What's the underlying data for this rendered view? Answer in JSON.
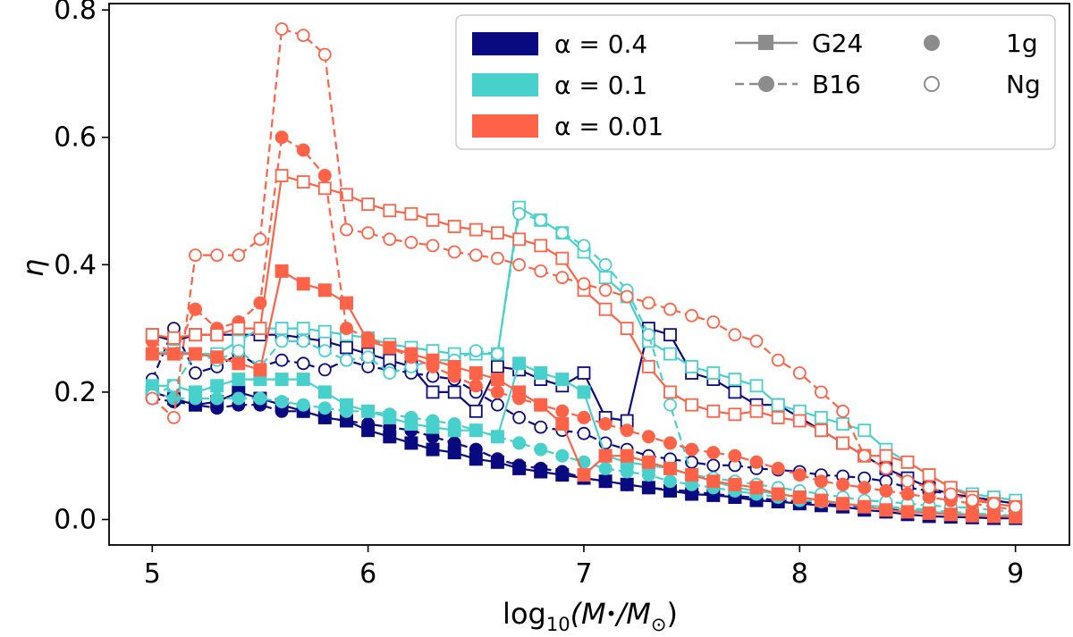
{
  "chart_data": {
    "type": "line",
    "xlabel": "log₁₀(M•/M⊙)",
    "xlabel_parts": {
      "prefix": "log",
      "sub": "10",
      "body": "(M",
      "bullet": "•",
      "slash": "/M",
      "sun": "⊙",
      "close": ")"
    },
    "ylabel": "η",
    "xlim": [
      4.8,
      9.25
    ],
    "ylim": [
      -0.04,
      0.81
    ],
    "xticks": [
      5,
      6,
      7,
      8,
      9
    ],
    "yticks": [
      0.0,
      0.2,
      0.4,
      0.6,
      0.8
    ],
    "xtick_labels": [
      "5",
      "6",
      "7",
      "8",
      "9"
    ],
    "ytick_labels": [
      "0.0",
      "0.2",
      "0.4",
      "0.6",
      "0.8"
    ],
    "grid": false,
    "legend_position": "top-right",
    "legend": {
      "colors": [
        {
          "label": "α = 0.4",
          "color": "#0a0a80"
        },
        {
          "label": "α = 0.1",
          "color": "#48d1cc"
        },
        {
          "label": "α = 0.01",
          "color": "#ff6347"
        }
      ],
      "models": [
        {
          "label": "G24",
          "dash": "solid",
          "marker": "square"
        },
        {
          "label": "B16",
          "dash": "dashed",
          "marker": "circle"
        }
      ],
      "populations": [
        {
          "label": "1g",
          "fill": "filled"
        },
        {
          "label": "Ng",
          "fill": "open"
        }
      ],
      "gray": "#8c8c8c"
    },
    "x": [
      5.0,
      5.1,
      5.2,
      5.3,
      5.4,
      5.5,
      5.6,
      5.7,
      5.8,
      5.9,
      6.0,
      6.1,
      6.2,
      6.3,
      6.4,
      6.5,
      6.6,
      6.7,
      6.8,
      6.9,
      7.0,
      7.1,
      7.2,
      7.3,
      7.4,
      7.5,
      7.6,
      7.7,
      7.8,
      7.9,
      8.0,
      8.1,
      8.2,
      8.3,
      8.4,
      8.5,
      8.6,
      8.7,
      8.8,
      8.9,
      9.0
    ],
    "series": [
      {
        "name": "α = 0.4, G24, 1g",
        "color": "#0a0a80",
        "dash": "solid",
        "marker": "square",
        "fill": "filled",
        "values": [
          0.2,
          0.19,
          0.18,
          0.185,
          0.2,
          0.19,
          0.18,
          0.17,
          0.16,
          0.155,
          0.14,
          0.13,
          0.12,
          0.11,
          0.105,
          0.095,
          0.09,
          0.08,
          0.075,
          0.07,
          0.065,
          0.06,
          0.055,
          0.05,
          0.045,
          0.04,
          0.038,
          0.035,
          0.03,
          0.028,
          0.025,
          0.022,
          0.02,
          0.015,
          0.012,
          0.008,
          0.005,
          0.004,
          0.003,
          0.002,
          0.002
        ]
      },
      {
        "name": "α = 0.4, B16, 1g",
        "color": "#0a0a80",
        "dash": "dashed",
        "marker": "circle",
        "fill": "filled",
        "values": [
          0.19,
          0.185,
          0.18,
          0.175,
          0.18,
          0.18,
          0.17,
          0.17,
          0.16,
          0.155,
          0.15,
          0.145,
          0.14,
          0.13,
          0.12,
          0.11,
          0.095,
          0.085,
          0.08,
          0.075,
          0.065,
          0.06,
          0.055,
          0.05,
          0.047,
          0.044,
          0.04,
          0.037,
          0.034,
          0.03,
          0.028,
          0.025,
          0.022,
          0.02,
          0.017,
          0.015,
          0.012,
          0.01,
          0.008,
          0.006,
          0.005
        ]
      },
      {
        "name": "α = 0.4, G24, Ng",
        "color": "#0a0a80",
        "dash": "solid",
        "marker": "square",
        "fill": "open",
        "values": [
          0.29,
          0.28,
          0.29,
          0.29,
          0.29,
          0.29,
          0.29,
          0.285,
          0.28,
          0.27,
          0.26,
          0.25,
          0.24,
          0.2,
          0.2,
          0.17,
          0.24,
          0.235,
          0.22,
          0.21,
          0.23,
          0.16,
          0.155,
          0.3,
          0.29,
          0.23,
          0.22,
          0.2,
          0.18,
          0.18,
          0.16,
          0.14,
          0.12,
          0.1,
          0.08,
          0.065,
          0.05,
          0.04,
          0.035,
          0.03,
          0.025
        ]
      },
      {
        "name": "α = 0.4, B16, Ng",
        "color": "#0a0a80",
        "dash": "dashed",
        "marker": "circle",
        "fill": "open",
        "values": [
          0.22,
          0.3,
          0.23,
          0.24,
          0.26,
          0.24,
          0.25,
          0.245,
          0.235,
          0.25,
          0.24,
          0.235,
          0.23,
          0.225,
          0.22,
          0.2,
          0.18,
          0.16,
          0.145,
          0.14,
          0.135,
          0.12,
          0.11,
          0.1,
          0.095,
          0.09,
          0.085,
          0.085,
          0.08,
          0.078,
          0.075,
          0.07,
          0.068,
          0.065,
          0.06,
          0.05,
          0.045,
          0.04,
          0.035,
          0.03,
          0.025
        ]
      },
      {
        "name": "α = 0.1, G24, 1g",
        "color": "#48d1cc",
        "dash": "solid",
        "marker": "square",
        "fill": "filled",
        "values": [
          0.21,
          0.21,
          0.2,
          0.21,
          0.22,
          0.22,
          0.22,
          0.22,
          0.2,
          0.18,
          0.17,
          0.16,
          0.15,
          0.145,
          0.14,
          0.14,
          0.13,
          0.245,
          0.23,
          0.22,
          0.2,
          0.1,
          0.09,
          0.085,
          0.08,
          0.07,
          0.06,
          0.05,
          0.045,
          0.04,
          0.035,
          0.03,
          0.025,
          0.022,
          0.02,
          0.015,
          0.012,
          0.01,
          0.008,
          0.006,
          0.005
        ]
      },
      {
        "name": "α = 0.1, B16, 1g",
        "color": "#48d1cc",
        "dash": "dashed",
        "marker": "circle",
        "fill": "filled",
        "values": [
          0.2,
          0.19,
          0.19,
          0.19,
          0.19,
          0.19,
          0.185,
          0.18,
          0.175,
          0.17,
          0.17,
          0.165,
          0.16,
          0.155,
          0.15,
          0.14,
          0.13,
          0.12,
          0.11,
          0.1,
          0.09,
          0.08,
          0.075,
          0.07,
          0.06,
          0.055,
          0.05,
          0.045,
          0.04,
          0.035,
          0.03,
          0.028,
          0.025,
          0.022,
          0.02,
          0.018,
          0.015,
          0.012,
          0.01,
          0.008,
          0.006
        ]
      },
      {
        "name": "α = 0.1, G24, Ng",
        "color": "#48d1cc",
        "dash": "solid",
        "marker": "square",
        "fill": "open",
        "values": [
          0.26,
          0.265,
          0.26,
          0.26,
          0.28,
          0.3,
          0.3,
          0.3,
          0.295,
          0.29,
          0.285,
          0.275,
          0.27,
          0.265,
          0.26,
          0.26,
          0.26,
          0.49,
          0.47,
          0.45,
          0.42,
          0.38,
          0.35,
          0.28,
          0.26,
          0.24,
          0.23,
          0.22,
          0.21,
          0.18,
          0.17,
          0.16,
          0.15,
          0.14,
          0.11,
          0.09,
          0.07,
          0.05,
          0.04,
          0.035,
          0.03
        ]
      },
      {
        "name": "α = 0.1, B16, Ng",
        "color": "#48d1cc",
        "dash": "dashed",
        "marker": "circle",
        "fill": "open",
        "values": [
          0.195,
          0.21,
          0.26,
          0.25,
          0.265,
          0.24,
          0.28,
          0.28,
          0.265,
          0.25,
          0.255,
          0.23,
          0.24,
          0.25,
          0.25,
          0.265,
          0.26,
          0.48,
          0.47,
          0.45,
          0.43,
          0.4,
          0.36,
          0.29,
          0.18,
          0.07,
          0.065,
          0.06,
          0.055,
          0.05,
          0.045,
          0.04,
          0.035,
          0.03,
          0.028,
          0.025,
          0.022,
          0.02,
          0.018,
          0.015,
          0.012
        ]
      },
      {
        "name": "α = 0.01, G24, 1g",
        "color": "#ff6347",
        "dash": "solid",
        "marker": "square",
        "fill": "filled",
        "values": [
          0.26,
          0.26,
          0.26,
          0.255,
          0.245,
          0.235,
          0.39,
          0.37,
          0.36,
          0.34,
          0.28,
          0.27,
          0.26,
          0.25,
          0.24,
          0.23,
          0.22,
          0.2,
          0.18,
          0.15,
          0.07,
          0.1,
          0.1,
          0.09,
          0.08,
          0.07,
          0.06,
          0.055,
          0.05,
          0.04,
          0.035,
          0.03,
          0.025,
          0.02,
          0.015,
          0.012,
          0.01,
          0.008,
          0.006,
          0.005,
          0.004
        ]
      },
      {
        "name": "α = 0.01, B16, 1g",
        "color": "#ff6347",
        "dash": "dashed",
        "marker": "circle",
        "fill": "filled",
        "values": [
          0.28,
          0.26,
          0.33,
          0.3,
          0.31,
          0.34,
          0.6,
          0.58,
          0.54,
          0.3,
          0.285,
          0.27,
          0.255,
          0.24,
          0.225,
          0.21,
          0.2,
          0.19,
          0.18,
          0.17,
          0.16,
          0.15,
          0.14,
          0.13,
          0.12,
          0.11,
          0.105,
          0.1,
          0.09,
          0.08,
          0.07,
          0.06,
          0.055,
          0.05,
          0.045,
          0.04,
          0.035,
          0.03,
          0.025,
          0.02,
          0.015
        ]
      },
      {
        "name": "α = 0.01, G24, Ng",
        "color": "#ff6347",
        "dash": "solid",
        "marker": "square",
        "fill": "open",
        "values": [
          0.29,
          0.285,
          0.29,
          0.29,
          0.3,
          0.3,
          0.54,
          0.53,
          0.52,
          0.51,
          0.495,
          0.485,
          0.48,
          0.47,
          0.46,
          0.455,
          0.45,
          0.44,
          0.43,
          0.41,
          0.36,
          0.33,
          0.3,
          0.24,
          0.2,
          0.18,
          0.17,
          0.165,
          0.17,
          0.16,
          0.155,
          0.14,
          0.12,
          0.1,
          0.1,
          0.09,
          0.07,
          0.05,
          0.035,
          0.025,
          0.02
        ]
      },
      {
        "name": "α = 0.01, B16, Ng",
        "color": "#ff6347",
        "dash": "dashed",
        "marker": "circle",
        "fill": "open",
        "values": [
          0.19,
          0.16,
          0.415,
          0.415,
          0.415,
          0.44,
          0.77,
          0.76,
          0.73,
          0.455,
          0.45,
          0.44,
          0.435,
          0.43,
          0.42,
          0.415,
          0.41,
          0.4,
          0.39,
          0.38,
          0.37,
          0.36,
          0.35,
          0.34,
          0.33,
          0.32,
          0.31,
          0.29,
          0.28,
          0.25,
          0.23,
          0.2,
          0.17,
          0.1,
          0.08,
          0.06,
          0.05,
          0.04,
          0.03,
          0.025,
          0.02
        ]
      }
    ]
  }
}
